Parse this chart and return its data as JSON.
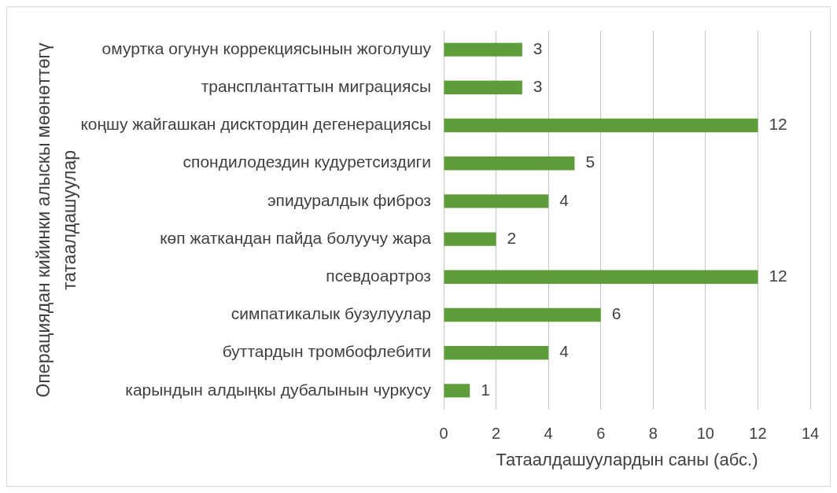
{
  "chart_data": {
    "type": "bar",
    "orientation": "horizontal",
    "xlabel": "Татаалдашуулардын саны (абс.)",
    "ylabel": "Операциядан кийинки алыскы мөөнөттөгү татаалдашуулар",
    "categories": [
      "омуртка огунун коррекциясынын жоголушу",
      "трансплантаттын миграциясы",
      "коңшу жайгашкан дисктордин дегенерациясы",
      "спондилодездин кудуретсиздиги",
      "эпидуралдык фиброз",
      "көп жаткандан пайда болуучу жара",
      "псевдоартроз",
      "симпатикалык бузулуулар",
      "буттардын тромбофлебити",
      "карындын алдыңкы дубалынын чуркусу"
    ],
    "values": [
      3,
      3,
      12,
      5,
      4,
      2,
      12,
      6,
      4,
      1
    ],
    "color": "#5e9e3a",
    "xlim": [
      0,
      14
    ],
    "xticks": [
      0,
      2,
      4,
      6,
      8,
      10,
      12,
      14
    ],
    "grid": "x",
    "data_labels": true
  }
}
